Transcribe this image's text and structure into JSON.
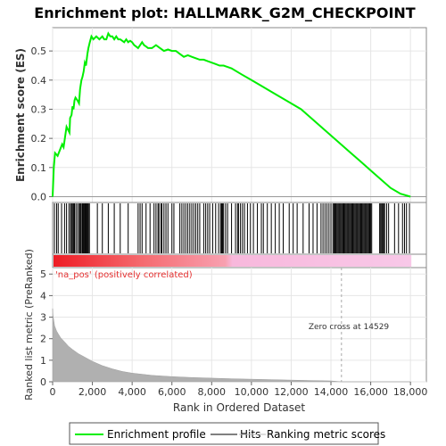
{
  "chart_data": [
    {
      "type": "line",
      "title": "Enrichment plot: HALLMARK_G2M_CHECKPOINT",
      "ylabel": "Enrichment score (ES)",
      "xlim": [
        0,
        18800
      ],
      "ylim": [
        -0.02,
        0.58
      ],
      "yticks": [
        0.0,
        0.1,
        0.2,
        0.3,
        0.4,
        0.5
      ],
      "ytick_labels": [
        "0.0",
        "0.1",
        "0.2",
        "0.3",
        "0.4",
        "0.5"
      ],
      "line_color": "#00ee00",
      "series": [
        {
          "name": "Enrichment profile",
          "x": [
            0,
            60,
            120,
            250,
            480,
            550,
            700,
            850,
            880,
            950,
            1000,
            1050,
            1100,
            1150,
            1250,
            1330,
            1380,
            1450,
            1500,
            1560,
            1620,
            1680,
            1750,
            1800,
            1870,
            1950,
            2050,
            2200,
            2350,
            2500,
            2600,
            2700,
            2800,
            2900,
            3000,
            3100,
            3200,
            3300,
            3400,
            3500,
            3600,
            3700,
            3800,
            3900,
            4000,
            4100,
            4200,
            4300,
            4400,
            4500,
            4600,
            4700,
            4800,
            5000,
            5200,
            5400,
            5600,
            5800,
            6000,
            6200,
            6400,
            6600,
            6800,
            7000,
            7200,
            7400,
            7600,
            7800,
            8000,
            8200,
            8400,
            8600,
            8800,
            9000,
            9500,
            10000,
            10500,
            11000,
            11500,
            12000,
            12500,
            13000,
            13500,
            14000,
            14500,
            15000,
            15500,
            16000,
            16500,
            17000,
            17500,
            18000
          ],
          "y": [
            0.0,
            0.1,
            0.15,
            0.14,
            0.18,
            0.17,
            0.24,
            0.22,
            0.27,
            0.28,
            0.31,
            0.3,
            0.33,
            0.34,
            0.33,
            0.32,
            0.37,
            0.4,
            0.41,
            0.43,
            0.46,
            0.45,
            0.49,
            0.51,
            0.53,
            0.55,
            0.54,
            0.55,
            0.54,
            0.55,
            0.54,
            0.54,
            0.56,
            0.55,
            0.55,
            0.54,
            0.55,
            0.54,
            0.54,
            0.535,
            0.53,
            0.54,
            0.53,
            0.535,
            0.53,
            0.52,
            0.515,
            0.51,
            0.52,
            0.53,
            0.52,
            0.515,
            0.51,
            0.51,
            0.52,
            0.51,
            0.5,
            0.505,
            0.5,
            0.5,
            0.49,
            0.48,
            0.485,
            0.48,
            0.475,
            0.47,
            0.47,
            0.465,
            0.46,
            0.455,
            0.45,
            0.45,
            0.445,
            0.44,
            0.42,
            0.4,
            0.38,
            0.36,
            0.34,
            0.32,
            0.3,
            0.27,
            0.24,
            0.21,
            0.18,
            0.15,
            0.12,
            0.09,
            0.06,
            0.03,
            0.01,
            0.0
          ]
        }
      ]
    },
    {
      "type": "scatter",
      "name": "Hits",
      "hit_positions": [
        90,
        200,
        280,
        450,
        600,
        700,
        820,
        900,
        950,
        1000,
        1050,
        1100,
        1170,
        1250,
        1330,
        1380,
        1420,
        1480,
        1520,
        1560,
        1600,
        1640,
        1680,
        1720,
        1760,
        1800,
        1850,
        2250,
        2500,
        2800,
        3100,
        3400,
        3800,
        4300,
        4400,
        4500,
        4700,
        4900,
        5100,
        5200,
        5300,
        5350,
        5450,
        5500,
        5600,
        5700,
        5800,
        6000,
        6100,
        6400,
        6500,
        6600,
        6700,
        6800,
        6900,
        7000,
        7100,
        7200,
        7300,
        7400,
        7600,
        7700,
        7800,
        7900,
        8050,
        8200,
        8350,
        8450,
        8500,
        8550,
        8600,
        8700,
        8800,
        9000,
        9200,
        9300,
        9350,
        9450,
        9550,
        9650,
        9800,
        9950,
        10100,
        10300,
        10500,
        10600,
        10800,
        11000,
        11200,
        11400,
        11600,
        11900,
        12100,
        12300,
        12600,
        12900,
        13100,
        13300,
        13500,
        13600,
        13700,
        13800,
        13900,
        14000,
        14100,
        14150,
        14200,
        14250,
        14300,
        14350,
        14400,
        14450,
        14500,
        14550,
        14600,
        14650,
        14700,
        14750,
        14800,
        14850,
        14900,
        14950,
        15000,
        15050,
        15100,
        15150,
        15200,
        15250,
        15300,
        15350,
        15400,
        15450,
        15500,
        15550,
        15600,
        15650,
        15700,
        15750,
        15800,
        15850,
        15900,
        15950,
        16000,
        16050,
        16450,
        16500,
        16550,
        16600,
        16650,
        16700,
        16800,
        16900,
        17200,
        17400,
        17600,
        17700,
        17800,
        17950
      ]
    },
    {
      "type": "area",
      "title": "",
      "xlabel": "Rank in Ordered Dataset",
      "ylabel": "Ranked list metric (PreRanked)",
      "xlim": [
        0,
        18800
      ],
      "ylim": [
        0,
        5.3
      ],
      "xticks": [
        0,
        2000,
        4000,
        6000,
        8000,
        10000,
        12000,
        14000,
        16000,
        18000
      ],
      "xtick_labels": [
        "0",
        "2,000",
        "4,000",
        "6,000",
        "8,000",
        "10,000",
        "12,000",
        "14,000",
        "16,000",
        "18,000"
      ],
      "yticks": [
        0,
        1,
        2,
        3,
        4,
        5
      ],
      "ytick_labels": [
        "0",
        "1",
        "2",
        "3",
        "4",
        "5"
      ],
      "annotations": {
        "positive_label": "'na_pos' (positively correlated)",
        "zero_cross_label": "Zero cross at 14529",
        "zero_cross_x": 14529
      },
      "series": [
        {
          "name": "Ranking metric scores",
          "x": [
            0,
            20,
            50,
            100,
            200,
            300,
            400,
            600,
            800,
            1000,
            1300,
            1600,
            2000,
            2500,
            3000,
            3500,
            4000,
            5000,
            6000,
            7000,
            8000,
            9000,
            10000,
            11000,
            12000,
            13000,
            14000,
            14529,
            15000,
            16000,
            17000,
            18000
          ],
          "y": [
            3.4,
            3.1,
            2.9,
            2.6,
            2.35,
            2.2,
            2.05,
            1.85,
            1.65,
            1.5,
            1.3,
            1.15,
            0.95,
            0.75,
            0.6,
            0.48,
            0.4,
            0.3,
            0.24,
            0.2,
            0.17,
            0.14,
            0.12,
            0.1,
            0.08,
            0.06,
            0.04,
            0.0,
            0.0,
            0.0,
            0.0,
            0.0
          ]
        }
      ]
    }
  ],
  "legend": {
    "items": [
      {
        "label": "Enrichment profile",
        "color": "#00ee00"
      },
      {
        "label": "Hits",
        "color": "#000000"
      },
      {
        "label": "Ranking metric scores",
        "color": "#bbbbbb"
      }
    ]
  }
}
